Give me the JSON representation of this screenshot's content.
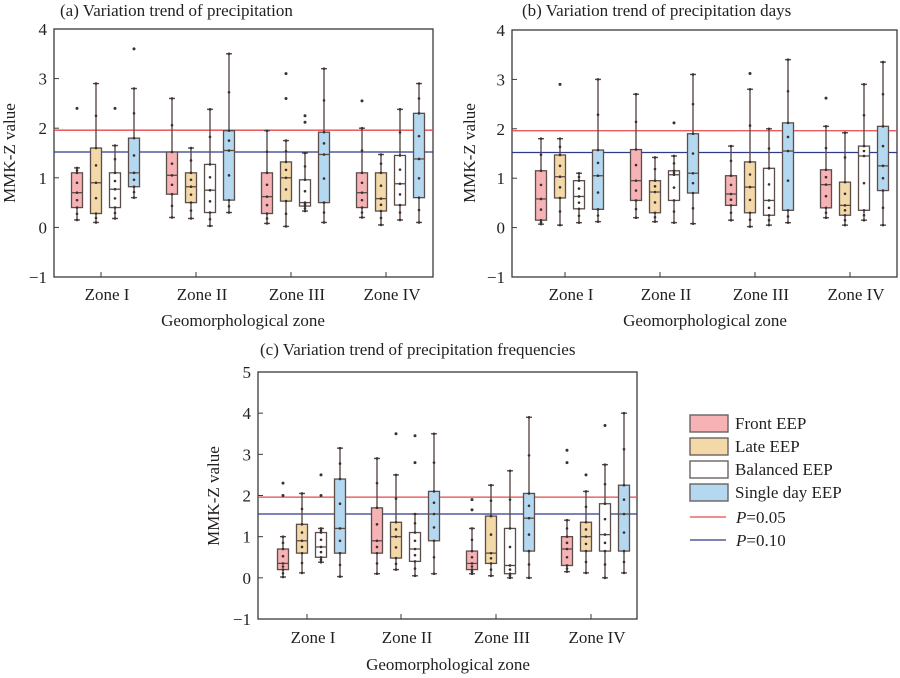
{
  "legend": {
    "items": [
      {
        "label": "Front EEP",
        "type": "box",
        "color": "#f6b2b4"
      },
      {
        "label": "Late EEP",
        "type": "box",
        "color": "#f3d8a8"
      },
      {
        "label": "Balanced EEP",
        "type": "box",
        "color": "#ffffff"
      },
      {
        "label": "Single day EEP",
        "type": "box",
        "color": "#b3d8ef"
      },
      {
        "label_prefix": "P",
        "label_suffix": "=0.05",
        "type": "line",
        "color": "#e8474a"
      },
      {
        "label_prefix": "P",
        "label_suffix": "=0.10",
        "type": "line",
        "color": "#2e3a8c"
      }
    ]
  },
  "chart_data": [
    {
      "type": "box",
      "title": "(a) Variation trend of precipitation",
      "xlabel": "Geomorphological zone",
      "ylabel": "MMK-Z value",
      "ylim": [
        -1,
        4
      ],
      "yticks": [
        "−1",
        "0",
        "1",
        "2",
        "3",
        "4"
      ],
      "categories": [
        "Zone I",
        "Zone II",
        "Zone III",
        "Zone IV"
      ],
      "reference_lines": [
        {
          "name": "P=0.05",
          "value": 1.96
        },
        {
          "name": "P=0.10",
          "value": 1.52
        }
      ],
      "series": [
        {
          "name": "Front EEP",
          "boxes": [
            {
              "min": 0.15,
              "q1": 0.4,
              "median": 0.7,
              "q3": 1.1,
              "max": 1.2,
              "outliers": [
                2.4
              ]
            },
            {
              "min": 0.2,
              "q1": 0.67,
              "median": 1.05,
              "q3": 1.52,
              "max": 2.6,
              "outliers": []
            },
            {
              "min": 0.08,
              "q1": 0.28,
              "median": 0.62,
              "q3": 1.1,
              "max": 1.95,
              "outliers": []
            },
            {
              "min": 0.2,
              "q1": 0.4,
              "median": 0.7,
              "q3": 1.1,
              "max": 2.0,
              "outliers": [
                2.55
              ]
            }
          ]
        },
        {
          "name": "Late EEP",
          "boxes": [
            {
              "min": 0.1,
              "q1": 0.28,
              "median": 0.9,
              "q3": 1.6,
              "max": 2.9,
              "outliers": []
            },
            {
              "min": 0.18,
              "q1": 0.5,
              "median": 0.82,
              "q3": 1.1,
              "max": 1.6,
              "outliers": []
            },
            {
              "min": 0.02,
              "q1": 0.53,
              "median": 1.0,
              "q3": 1.32,
              "max": 1.75,
              "outliers": [
                2.6,
                3.1
              ]
            },
            {
              "min": 0.05,
              "q1": 0.33,
              "median": 0.58,
              "q3": 1.1,
              "max": 1.47,
              "outliers": []
            }
          ]
        },
        {
          "name": "Balanced EEP",
          "boxes": [
            {
              "min": 0.18,
              "q1": 0.4,
              "median": 0.77,
              "q3": 1.1,
              "max": 1.65,
              "outliers": [
                2.4
              ]
            },
            {
              "min": 0.03,
              "q1": 0.3,
              "median": 0.75,
              "q3": 1.27,
              "max": 2.38,
              "outliers": []
            },
            {
              "min": 0.33,
              "q1": 0.43,
              "median": 0.5,
              "q3": 0.96,
              "max": 1.5,
              "outliers": [
                2.12,
                2.25
              ]
            },
            {
              "min": 0.15,
              "q1": 0.45,
              "median": 0.88,
              "q3": 1.45,
              "max": 2.38,
              "outliers": []
            }
          ]
        },
        {
          "name": "Single day EEP",
          "boxes": [
            {
              "min": 0.6,
              "q1": 0.82,
              "median": 1.1,
              "q3": 1.8,
              "max": 2.8,
              "outliers": [
                3.6
              ]
            },
            {
              "min": 0.3,
              "q1": 0.55,
              "median": 1.55,
              "q3": 1.95,
              "max": 3.5,
              "outliers": []
            },
            {
              "min": 0.1,
              "q1": 0.5,
              "median": 1.47,
              "q3": 1.92,
              "max": 3.2,
              "outliers": []
            },
            {
              "min": 0.1,
              "q1": 0.6,
              "median": 1.38,
              "q3": 2.3,
              "max": 2.9,
              "outliers": []
            }
          ]
        }
      ]
    },
    {
      "type": "box",
      "title": "(b) Variation trend of precipitation days",
      "xlabel": "Geomorphological zone",
      "ylabel": "MMK-Z value",
      "ylim": [
        -1,
        4
      ],
      "yticks": [
        "−1",
        "0",
        "1",
        "2",
        "3",
        "4"
      ],
      "categories": [
        "Zone I",
        "Zone II",
        "Zone III",
        "Zone IV"
      ],
      "reference_lines": [
        {
          "name": "P=0.05",
          "value": 1.96
        },
        {
          "name": "P=0.10",
          "value": 1.52
        }
      ],
      "series": [
        {
          "name": "Front EEP",
          "boxes": [
            {
              "min": 0.07,
              "q1": 0.15,
              "median": 0.58,
              "q3": 1.15,
              "max": 1.8,
              "outliers": []
            },
            {
              "min": 0.2,
              "q1": 0.55,
              "median": 0.95,
              "q3": 1.58,
              "max": 2.7,
              "outliers": []
            },
            {
              "min": 0.15,
              "q1": 0.45,
              "median": 0.68,
              "q3": 1.05,
              "max": 1.65,
              "outliers": []
            },
            {
              "min": 0.2,
              "q1": 0.4,
              "median": 0.87,
              "q3": 1.17,
              "max": 2.05,
              "outliers": [
                2.62
              ]
            }
          ]
        },
        {
          "name": "Late EEP",
          "boxes": [
            {
              "min": 0.05,
              "q1": 0.6,
              "median": 1.03,
              "q3": 1.47,
              "max": 1.8,
              "outliers": [
                2.9
              ]
            },
            {
              "min": 0.12,
              "q1": 0.3,
              "median": 0.72,
              "q3": 0.95,
              "max": 1.42,
              "outliers": []
            },
            {
              "min": 0.02,
              "q1": 0.3,
              "median": 0.82,
              "q3": 1.33,
              "max": 2.8,
              "outliers": [
                3.12
              ]
            },
            {
              "min": 0.05,
              "q1": 0.25,
              "median": 0.45,
              "q3": 0.92,
              "max": 1.92,
              "outliers": []
            }
          ]
        },
        {
          "name": "Balanced EEP",
          "boxes": [
            {
              "min": 0.1,
              "q1": 0.38,
              "median": 0.63,
              "q3": 0.95,
              "max": 1.1,
              "outliers": []
            },
            {
              "min": 0.1,
              "q1": 0.55,
              "median": 1.07,
              "q3": 1.15,
              "max": 1.45,
              "outliers": [
                2.12
              ]
            },
            {
              "min": 0.05,
              "q1": 0.25,
              "median": 0.55,
              "q3": 1.2,
              "max": 2.0,
              "outliers": []
            },
            {
              "min": 0.15,
              "q1": 0.35,
              "median": 1.45,
              "q3": 1.65,
              "max": 2.9,
              "outliers": []
            }
          ]
        },
        {
          "name": "Single day EEP",
          "boxes": [
            {
              "min": 0.12,
              "q1": 0.37,
              "median": 1.05,
              "q3": 1.57,
              "max": 3.0,
              "outliers": []
            },
            {
              "min": 0.08,
              "q1": 0.7,
              "median": 1.1,
              "q3": 1.9,
              "max": 3.1,
              "outliers": []
            },
            {
              "min": 0.1,
              "q1": 0.35,
              "median": 1.55,
              "q3": 2.12,
              "max": 3.4,
              "outliers": []
            },
            {
              "min": 0.05,
              "q1": 0.75,
              "median": 1.25,
              "q3": 2.05,
              "max": 3.35,
              "outliers": []
            }
          ]
        }
      ]
    },
    {
      "type": "box",
      "title": "(c) Variation trend of precipitation frequencies",
      "xlabel": "Geomorphological zone",
      "ylabel": "MMK-Z value",
      "ylim": [
        -1,
        5
      ],
      "yticks": [
        "−1",
        "0",
        "1",
        "2",
        "3",
        "4",
        "5"
      ],
      "categories": [
        "Zone I",
        "Zone II",
        "Zone III",
        "Zone IV"
      ],
      "reference_lines": [
        {
          "name": "P=0.05",
          "value": 1.96
        },
        {
          "name": "P=0.10",
          "value": 1.55
        }
      ],
      "series": [
        {
          "name": "Front EEP",
          "boxes": [
            {
              "min": 0.02,
              "q1": 0.2,
              "median": 0.35,
              "q3": 0.7,
              "max": 1.0,
              "outliers": [
                2.0,
                2.3
              ]
            },
            {
              "min": 0.1,
              "q1": 0.6,
              "median": 0.9,
              "q3": 1.7,
              "max": 2.9,
              "outliers": []
            },
            {
              "min": 0.1,
              "q1": 0.2,
              "median": 0.35,
              "q3": 0.65,
              "max": 1.2,
              "outliers": [
                1.65,
                1.9
              ]
            },
            {
              "min": 0.15,
              "q1": 0.3,
              "median": 0.7,
              "q3": 1.0,
              "max": 1.4,
              "outliers": [
                2.8,
                3.1
              ]
            }
          ]
        },
        {
          "name": "Late EEP",
          "boxes": [
            {
              "min": 0.12,
              "q1": 0.6,
              "median": 0.9,
              "q3": 1.3,
              "max": 2.05,
              "outliers": []
            },
            {
              "min": 0.2,
              "q1": 0.48,
              "median": 1.0,
              "q3": 1.35,
              "max": 2.5,
              "outliers": [
                3.5
              ]
            },
            {
              "min": 0.05,
              "q1": 0.35,
              "median": 0.6,
              "q3": 1.5,
              "max": 2.25,
              "outliers": []
            },
            {
              "min": 0.12,
              "q1": 0.65,
              "median": 1.0,
              "q3": 1.35,
              "max": 2.1,
              "outliers": [
                2.5
              ]
            }
          ]
        },
        {
          "name": "Balanced EEP",
          "boxes": [
            {
              "min": 0.38,
              "q1": 0.5,
              "median": 0.75,
              "q3": 1.1,
              "max": 1.2,
              "outliers": [
                2.0,
                2.5
              ]
            },
            {
              "min": 0.05,
              "q1": 0.4,
              "median": 0.7,
              "q3": 1.1,
              "max": 1.55,
              "outliers": [
                2.8,
                3.45
              ]
            },
            {
              "min": 0.0,
              "q1": 0.1,
              "median": 0.3,
              "q3": 1.2,
              "max": 2.6,
              "outliers": []
            },
            {
              "min": 0.0,
              "q1": 0.65,
              "median": 1.05,
              "q3": 1.8,
              "max": 2.75,
              "outliers": [
                3.7
              ]
            }
          ]
        },
        {
          "name": "Single day EEP",
          "boxes": [
            {
              "min": 0.03,
              "q1": 0.6,
              "median": 1.2,
              "q3": 2.4,
              "max": 3.15,
              "outliers": []
            },
            {
              "min": 0.1,
              "q1": 0.9,
              "median": 1.55,
              "q3": 2.1,
              "max": 3.5,
              "outliers": []
            },
            {
              "min": 0.0,
              "q1": 0.65,
              "median": 1.45,
              "q3": 2.05,
              "max": 3.9,
              "outliers": []
            },
            {
              "min": 0.12,
              "q1": 0.65,
              "median": 1.55,
              "q3": 2.25,
              "max": 4.0,
              "outliers": []
            }
          ]
        }
      ]
    }
  ]
}
